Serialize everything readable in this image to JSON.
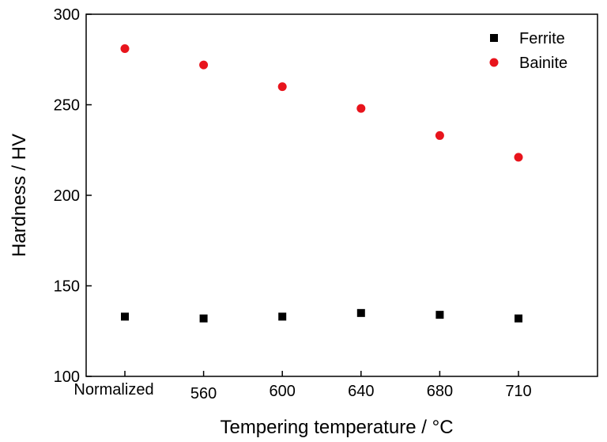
{
  "chart_data": {
    "type": "scatter",
    "title": "",
    "xlabel": "Tempering temperature / °C",
    "ylabel": "Hardness / HV",
    "categories": [
      "Normalized",
      "560",
      "600",
      "640",
      "680",
      "710"
    ],
    "ylim": [
      100,
      300
    ],
    "yticks": [
      100,
      150,
      200,
      250,
      300
    ],
    "grid": false,
    "legend_position": "top-right",
    "series": [
      {
        "name": "Ferrite",
        "marker": "square",
        "color": "#000000",
        "values": [
          133,
          132,
          133,
          135,
          134,
          132
        ]
      },
      {
        "name": "Bainite",
        "marker": "circle",
        "color": "#e8141c",
        "values": [
          281,
          272,
          260,
          248,
          233,
          221
        ]
      }
    ]
  }
}
